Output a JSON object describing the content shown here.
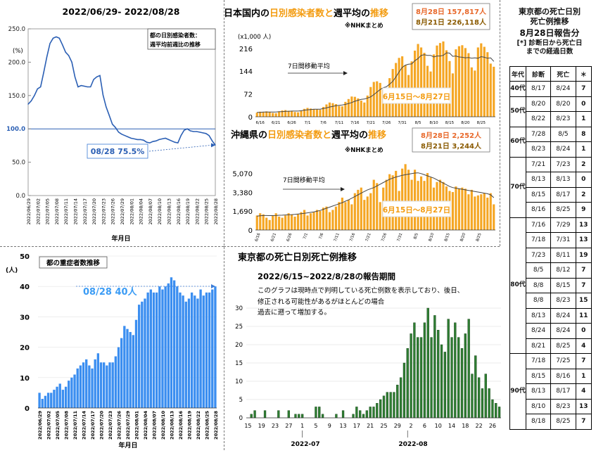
{
  "panel_weekly_ratio": {
    "title": "2022/06/29- 2022/08/28",
    "box_label_lines": [
      "都の日別感染者数：",
      "週平均前週比の推移"
    ],
    "unit": "(%)",
    "callout": "08/28 75.5%",
    "xlabel": "年月日"
  },
  "panel_nationwide": {
    "title_parts": [
      "日本国内の",
      "日別感染者数と",
      "週平均の",
      "推移"
    ],
    "source": "※NHKまとめ",
    "stat_line1": "8月28日 157,817人",
    "stat_line2": "8月21日 226,118人",
    "unit": "(x1,000 人)",
    "avg_label": "7日間移動平均",
    "range_label": "6月15日〜8月27日"
  },
  "panel_okinawa": {
    "title_parts": [
      "沖縄県の",
      "日別感染者数と",
      "週平均の",
      "推移"
    ],
    "source": "※NHKまとめ",
    "stat_line1": "8月28日 2,252人",
    "stat_line2": "8月21日 3,244人",
    "avg_label": "7日間移動平均",
    "range_label": "6月15日〜8月27日"
  },
  "panel_severe": {
    "box_label": "都の重症者数推移",
    "unit": "(人)",
    "callout": "08/28 40人",
    "xlabel": "年月日"
  },
  "panel_tokyo_deaths": {
    "title": "東京都の死亡日別死亡例推移",
    "period": "2022/6/15~2022/8/28の報告期間",
    "note_lines": [
      "このグラフは現時点で判明している死亡例数を表示しており、後日、",
      "修正される可能性があるがほとんどの場合",
      "過去に遡って増加する。"
    ],
    "month_labels": [
      "2022-07",
      "2022-08"
    ]
  },
  "death_table": {
    "title_lines": [
      "東京都の死亡日別",
      "死亡例推移"
    ],
    "subtitle": "8月28日報告分",
    "note_lines": [
      "[*] 診断日から死亡日",
      "までの経過日数"
    ],
    "headers": [
      "年代",
      "診断",
      "死亡",
      "＊"
    ],
    "groups": [
      {
        "age": "40代",
        "rows": [
          [
            "8/17",
            "8/24",
            "7"
          ]
        ]
      },
      {
        "age": "50代",
        "rows": [
          [
            "8/20",
            "8/20",
            "0"
          ],
          [
            "8/22",
            "8/23",
            "1"
          ]
        ]
      },
      {
        "age": "60代",
        "rows": [
          [
            "7/28",
            "8/5",
            "8"
          ],
          [
            "8/23",
            "8/24",
            "1"
          ]
        ]
      },
      {
        "age": "70代",
        "rows": [
          [
            "7/21",
            "7/23",
            "2"
          ],
          [
            "8/13",
            "8/13",
            "0"
          ],
          [
            "8/15",
            "8/17",
            "2"
          ],
          [
            "8/16",
            "8/25",
            "9"
          ]
        ]
      },
      {
        "age": "80代",
        "rows": [
          [
            "7/16",
            "7/29",
            "13"
          ],
          [
            "7/18",
            "7/31",
            "13"
          ],
          [
            "7/23",
            "8/11",
            "19"
          ],
          [
            "8/5",
            "8/12",
            "7"
          ],
          [
            "8/8",
            "8/15",
            "7"
          ],
          [
            "8/8",
            "8/23",
            "15"
          ],
          [
            "8/13",
            "8/24",
            "11"
          ],
          [
            "8/24",
            "8/24",
            "0"
          ],
          [
            "8/21",
            "8/25",
            "4"
          ]
        ]
      },
      {
        "age": "90代",
        "rows": [
          [
            "7/18",
            "7/25",
            "7"
          ],
          [
            "8/15",
            "8/16",
            "1"
          ],
          [
            "8/13",
            "8/17",
            "4"
          ],
          [
            "8/10",
            "8/23",
            "13"
          ],
          [
            "8/18",
            "8/25",
            "7"
          ]
        ]
      }
    ]
  },
  "colors": {
    "orange": "#f5a623",
    "blue_bar": "#3b8ef0",
    "green_bar": "#2e7d32",
    "line_blue": "#2b5fb4",
    "callout_blue": "#3b9cf5",
    "title_orange": "#f39c12"
  },
  "chart_data": [
    {
      "type": "line",
      "title": "2022/06/29- 2022/08/28",
      "xlabel": "年月日",
      "ylabel": "(%)",
      "ylim": [
        0,
        250
      ],
      "yticks": [
        "0.0",
        "50.0",
        "100.0",
        "150.0",
        "200.0",
        "250.0"
      ],
      "reference_line": 100,
      "x": [
        "2022/06/29",
        "2022/06/30",
        "2022/07/01",
        "2022/07/02",
        "2022/07/03",
        "2022/07/04",
        "2022/07/05",
        "2022/07/06",
        "2022/07/07",
        "2022/07/08",
        "2022/07/09",
        "2022/07/10",
        "2022/07/11",
        "2022/07/12",
        "2022/07/13",
        "2022/07/14",
        "2022/07/15",
        "2022/07/16",
        "2022/07/17",
        "2022/07/18",
        "2022/07/19",
        "2022/07/20",
        "2022/07/21",
        "2022/07/22",
        "2022/07/23",
        "2022/07/24",
        "2022/07/25",
        "2022/07/26",
        "2022/07/27",
        "2022/07/28",
        "2022/07/29",
        "2022/07/30",
        "2022/07/31",
        "2022/08/01",
        "2022/08/02",
        "2022/08/03",
        "2022/08/04",
        "2022/08/05",
        "2022/08/06",
        "2022/08/07",
        "2022/08/08",
        "2022/08/09",
        "2022/08/10",
        "2022/08/11",
        "2022/08/12",
        "2022/08/13",
        "2022/08/14",
        "2022/08/15",
        "2022/08/16",
        "2022/08/17",
        "2022/08/18",
        "2022/08/19",
        "2022/08/20",
        "2022/08/21",
        "2022/08/22",
        "2022/08/23",
        "2022/08/24",
        "2022/08/25",
        "2022/08/26",
        "2022/08/27",
        "2022/08/28"
      ],
      "xticks_shown": [
        "2022/06/29",
        "2022/07/02",
        "2022/07/05",
        "2022/07/08",
        "2022/07/11",
        "2022/07/14",
        "2022/07/17",
        "2022/07/20",
        "2022/07/23",
        "2022/07/26",
        "2022/07/29",
        "2022/08/01",
        "2022/08/04",
        "2022/08/07",
        "2022/08/10",
        "2022/08/13",
        "2022/08/16",
        "2022/08/19",
        "2022/08/22",
        "2022/08/25",
        "2022/08/28"
      ],
      "values": [
        137,
        142,
        150,
        160,
        163,
        185,
        208,
        228,
        236,
        238,
        236,
        226,
        215,
        210,
        200,
        178,
        163,
        165,
        164,
        163,
        163,
        174,
        178,
        180,
        151,
        133,
        120,
        107,
        102,
        95,
        92,
        90,
        88,
        86,
        85,
        84,
        84,
        83,
        80,
        79,
        81,
        82,
        84,
        85,
        86,
        84,
        82,
        80,
        79,
        90,
        98,
        100,
        97,
        96,
        96,
        95,
        94,
        93,
        90,
        82,
        75.5
      ],
      "callout": "08/28 75.5%"
    },
    {
      "type": "bar",
      "title": "日本国内の日別感染者数と週平均の推移",
      "unit": "(x1,000 人)",
      "ylim": [
        0,
        240
      ],
      "yticks": [
        0,
        72,
        144,
        216
      ],
      "xticks": [
        "6/16",
        "6/21",
        "6/26",
        "7/1",
        "7/6",
        "7/11",
        "7/16",
        "7/21",
        "7/26",
        "7/31",
        "8/5",
        "8/10",
        "8/15",
        "8/20",
        "8/25"
      ],
      "values": [
        13,
        16,
        14,
        17,
        15,
        12,
        11,
        17,
        20,
        21,
        19,
        18,
        15,
        14,
        20,
        25,
        28,
        26,
        24,
        23,
        22,
        31,
        39,
        45,
        43,
        40,
        34,
        33,
        47,
        56,
        64,
        63,
        58,
        51,
        45,
        67,
        94,
        110,
        112,
        107,
        86,
        65,
        122,
        151,
        170,
        186,
        191,
        163,
        132,
        175,
        209,
        230,
        219,
        202,
        161,
        143,
        197,
        225,
        233,
        238,
        210,
        176,
        137,
        213,
        223,
        226,
        217,
        201,
        156,
        146,
        219,
        232,
        221,
        204,
        168,
        158
      ],
      "moving_average_label": "7日間移動平均",
      "moving_average": [
        14,
        14,
        15,
        15,
        15,
        15,
        15,
        16,
        16,
        17,
        17,
        18,
        18,
        18,
        19,
        21,
        22,
        23,
        24,
        24,
        24,
        26,
        28,
        31,
        33,
        35,
        36,
        37,
        39,
        42,
        45,
        49,
        52,
        55,
        56,
        59,
        63,
        70,
        78,
        86,
        92,
        95,
        103,
        112,
        126,
        142,
        156,
        163,
        166,
        167,
        177,
        184,
        194,
        196,
        194,
        194,
        189,
        192,
        192,
        194,
        202,
        201,
        191,
        192,
        189,
        188,
        186,
        187,
        185,
        186,
        185,
        190,
        188,
        185,
        186,
        175
      ]
    },
    {
      "type": "bar",
      "title": "沖縄県の日別感染者数と週平均の推移",
      "ylim": [
        0,
        6300
      ],
      "yticks": [
        0,
        1690,
        3380,
        5070
      ],
      "xticks": [
        "6/16",
        "6/21",
        "6/26",
        "7/1",
        "7/6",
        "7/11",
        "7/16",
        "7/21",
        "7/26",
        "7/31",
        "8/5",
        "8/10",
        "8/15",
        "8/20",
        "8/25"
      ],
      "values": [
        1300,
        1500,
        1400,
        1100,
        900,
        1300,
        1500,
        1200,
        1100,
        1300,
        1500,
        1400,
        1200,
        1400,
        1600,
        1800,
        1300,
        1500,
        1600,
        1800,
        1700,
        2000,
        2100,
        1600,
        1800,
        2100,
        2500,
        2900,
        2500,
        2700,
        2300,
        3300,
        3600,
        3800,
        2700,
        3000,
        3300,
        4500,
        4200,
        2500,
        3800,
        4500,
        5000,
        4900,
        5300,
        3500,
        5500,
        5900,
        5400,
        4500,
        5400,
        4400,
        4800,
        4400,
        5100,
        4700,
        3800,
        4300,
        4500,
        4300,
        3900,
        3500,
        3400,
        3900,
        3700,
        3800,
        3700,
        3200,
        3600,
        3000,
        3100,
        3200,
        3300,
        2900,
        3300,
        2300
      ],
      "moving_average_label": "7日間移動平均",
      "moving_average": [
        1250,
        1280,
        1300,
        1300,
        1290,
        1290,
        1300,
        1320,
        1330,
        1350,
        1370,
        1380,
        1400,
        1430,
        1460,
        1500,
        1540,
        1580,
        1620,
        1680,
        1750,
        1850,
        1950,
        2050,
        2150,
        2250,
        2350,
        2450,
        2580,
        2700,
        2850,
        3000,
        3150,
        3300,
        3450,
        3600,
        3700,
        3800,
        3950,
        4100,
        4250,
        4400,
        4550,
        4650,
        4750,
        4820,
        4900,
        4950,
        5000,
        5050,
        5100,
        5120,
        5050,
        4950,
        4850,
        4750,
        4650,
        4500,
        4350,
        4200,
        4050,
        3900,
        3800,
        3750,
        3700,
        3650,
        3600,
        3550,
        3500,
        3450,
        3400,
        3350,
        3300,
        3250,
        3150,
        2900
      ]
    },
    {
      "type": "bar",
      "title": "都の重症者数推移",
      "ylabel": "(人)",
      "xlabel": "年月日",
      "ylim": [
        0,
        50
      ],
      "yticks": [
        0,
        10,
        20,
        30,
        40,
        50
      ],
      "x": [
        "2022/06/29",
        "2022/06/30",
        "2022/07/01",
        "2022/07/02",
        "2022/07/03",
        "2022/07/04",
        "2022/07/05",
        "2022/07/06",
        "2022/07/07",
        "2022/07/08",
        "2022/07/09",
        "2022/07/10",
        "2022/07/11",
        "2022/07/12",
        "2022/07/13",
        "2022/07/14",
        "2022/07/15",
        "2022/07/16",
        "2022/07/17",
        "2022/07/18",
        "2022/07/19",
        "2022/07/20",
        "2022/07/21",
        "2022/07/22",
        "2022/07/23",
        "2022/07/24",
        "2022/07/25",
        "2022/07/26",
        "2022/07/27",
        "2022/07/28",
        "2022/07/29",
        "2022/07/30",
        "2022/07/31",
        "2022/08/01",
        "2022/08/02",
        "2022/08/03",
        "2022/08/04",
        "2022/08/05",
        "2022/08/06",
        "2022/08/07",
        "2022/08/08",
        "2022/08/09",
        "2022/08/10",
        "2022/08/11",
        "2022/08/12",
        "2022/08/13",
        "2022/08/14",
        "2022/08/15",
        "2022/08/16",
        "2022/08/17",
        "2022/08/18",
        "2022/08/19",
        "2022/08/20",
        "2022/08/21",
        "2022/08/22",
        "2022/08/23",
        "2022/08/24",
        "2022/08/25",
        "2022/08/26",
        "2022/08/27",
        "2022/08/28"
      ],
      "xticks_shown": [
        "2022/06/29",
        "2022/07/02",
        "2022/07/05",
        "2022/07/08",
        "2022/07/11",
        "2022/07/14",
        "2022/07/17",
        "2022/07/20",
        "2022/07/23",
        "2022/07/26",
        "2022/07/29",
        "2022/08/01",
        "2022/08/04",
        "2022/08/07",
        "2022/08/10",
        "2022/08/13",
        "2022/08/16",
        "2022/08/19",
        "2022/08/22",
        "2022/08/25",
        "2022/08/28"
      ],
      "values": [
        5,
        3,
        4,
        5,
        5,
        6,
        7,
        8,
        6,
        7,
        9,
        10,
        11,
        13,
        14,
        15,
        16,
        14,
        13,
        16,
        18,
        15,
        15,
        14,
        15,
        15,
        17,
        20,
        23,
        27,
        26,
        25,
        24,
        29,
        34,
        35,
        36,
        38,
        39,
        38,
        38,
        40,
        39,
        40,
        41,
        43,
        42,
        40,
        38,
        37,
        35,
        36,
        38,
        37,
        36,
        39,
        37,
        38,
        38,
        39,
        40
      ],
      "callout": "08/28 40人"
    },
    {
      "type": "bar",
      "title": "東京都の死亡日別死亡例推移",
      "ylim": [
        0,
        30
      ],
      "yticks": [
        0,
        5,
        10,
        15,
        20,
        25,
        30
      ],
      "xticks": [
        "15",
        "19",
        "23",
        "27",
        "1",
        "5",
        "9",
        "13",
        "17",
        "21",
        "25",
        "29",
        "2",
        "6",
        "10",
        "14",
        "18",
        "22",
        "26"
      ],
      "x": [
        "6/15",
        "6/16",
        "6/17",
        "6/18",
        "6/19",
        "6/20",
        "6/21",
        "6/22",
        "6/23",
        "6/24",
        "6/25",
        "6/26",
        "6/27",
        "6/28",
        "6/29",
        "6/30",
        "7/1",
        "7/2",
        "7/3",
        "7/4",
        "7/5",
        "7/6",
        "7/7",
        "7/8",
        "7/9",
        "7/10",
        "7/11",
        "7/12",
        "7/13",
        "7/14",
        "7/15",
        "7/16",
        "7/17",
        "7/18",
        "7/19",
        "7/20",
        "7/21",
        "7/22",
        "7/23",
        "7/24",
        "7/25",
        "7/26",
        "7/27",
        "7/28",
        "7/29",
        "7/30",
        "7/31",
        "8/1",
        "8/2",
        "8/3",
        "8/4",
        "8/5",
        "8/6",
        "8/7",
        "8/8",
        "8/9",
        "8/10",
        "8/11",
        "8/12",
        "8/13",
        "8/14",
        "8/15",
        "8/16",
        "8/17",
        "8/18",
        "8/19",
        "8/20",
        "8/21",
        "8/22",
        "8/23",
        "8/24",
        "8/25",
        "8/26",
        "8/27",
        "8/28"
      ],
      "values": [
        0,
        1,
        2,
        0,
        0,
        2,
        0,
        0,
        0,
        2,
        0,
        0,
        2,
        0,
        1,
        1,
        1,
        0,
        0,
        0,
        3,
        3,
        1,
        0,
        0,
        0,
        1,
        0,
        2,
        0,
        0,
        1,
        3,
        2,
        1,
        2,
        3,
        3,
        4,
        5,
        6,
        7,
        7,
        7,
        9,
        11,
        15,
        19,
        23,
        26,
        22,
        22,
        26,
        30,
        22,
        28,
        24,
        20,
        18,
        27,
        22,
        26,
        22,
        19,
        23,
        27,
        12,
        17,
        11,
        8,
        12,
        8,
        5,
        4,
        3
      ]
    }
  ]
}
